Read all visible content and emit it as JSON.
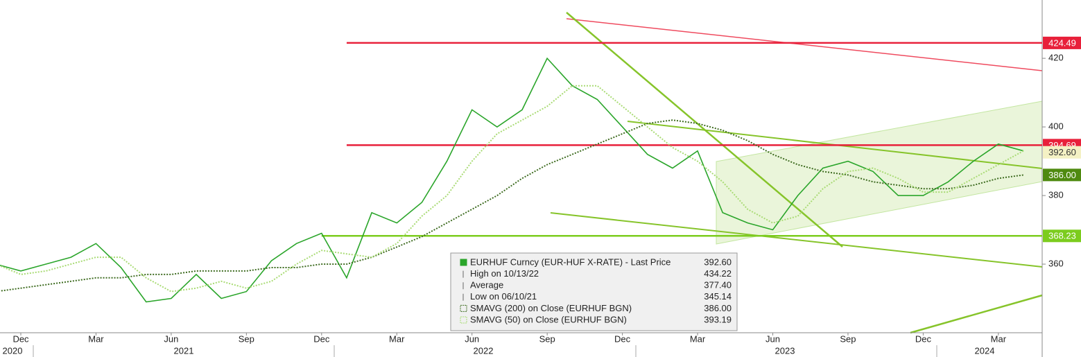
{
  "chart_data": {
    "type": "line",
    "x": [
      "2020-11",
      "2020-12",
      "2021-01",
      "2021-02",
      "2021-03",
      "2021-04",
      "2021-05",
      "2021-06",
      "2021-07",
      "2021-08",
      "2021-09",
      "2021-10",
      "2021-11",
      "2021-12",
      "2022-01",
      "2022-02",
      "2022-03",
      "2022-04",
      "2022-05",
      "2022-06",
      "2022-07",
      "2022-08",
      "2022-09",
      "2022-10",
      "2022-11",
      "2022-12",
      "2023-01",
      "2023-02",
      "2023-03",
      "2023-04",
      "2023-05",
      "2023-06",
      "2023-07",
      "2023-08",
      "2023-09",
      "2023-10",
      "2023-11",
      "2023-12",
      "2024-01",
      "2024-02",
      "2024-03",
      "2024-04"
    ],
    "series": [
      {
        "name": "EURHUF Curncy (EUR-HUF X-RATE) - Last Price",
        "color": "#2aa52a",
        "width": 1.6,
        "dash": "",
        "values": [
          360,
          358,
          360,
          362,
          366,
          359,
          349,
          350,
          357,
          350,
          352,
          361,
          366,
          369,
          356,
          375,
          372,
          378,
          390,
          405,
          400,
          405,
          420,
          412,
          408,
          400,
          392,
          388,
          393,
          375,
          372,
          370,
          380,
          388,
          390,
          387,
          380,
          380,
          384,
          390,
          395,
          393
        ]
      },
      {
        "name": "SMAVG (200)  on Close (EURHUF BGN)",
        "color": "#3d6b1f",
        "width": 2,
        "dash": "2 2",
        "values": [
          352,
          353,
          354,
          355,
          356,
          356,
          357,
          357,
          358,
          358,
          358,
          359,
          359,
          360,
          360,
          362,
          365,
          368,
          372,
          376,
          380,
          385,
          389,
          392,
          395,
          398,
          401,
          402,
          401,
          399,
          396,
          392,
          389,
          387,
          386,
          384,
          383,
          382,
          382,
          383,
          385,
          386
        ]
      },
      {
        "name": "SMAVG (50)  on Close (EURHUF BGN)",
        "color": "#a9db74",
        "width": 2,
        "dash": "2 2",
        "values": [
          360,
          357,
          358,
          360,
          362,
          362,
          356,
          352,
          353,
          355,
          353,
          355,
          360,
          364,
          363,
          362,
          366,
          374,
          380,
          390,
          398,
          402,
          406,
          412,
          412,
          406,
          400,
          394,
          390,
          384,
          376,
          372,
          374,
          382,
          387,
          388,
          385,
          381,
          381,
          385,
          389,
          393
        ]
      }
    ],
    "levels": [
      {
        "value": 424.49,
        "color": "#e8203a",
        "from": "2022-01",
        "line": true
      },
      {
        "value": 394.69,
        "color": "#e8203a",
        "from": "2022-01",
        "line": true
      },
      {
        "value": {
          "value": 392.6,
          "label": "392.60"
        },
        "color": "#f4f1c4",
        "from": "2024-04",
        "line": false
      },
      {
        "value": {
          "value": 386,
          "label": "386.00"
        },
        "color": "#4f8a10",
        "from": "2024-04",
        "line": false
      },
      {
        "value": 368.23,
        "color": "#7ccc1e",
        "from": "2021-12",
        "line": true
      }
    ],
    "ylim": [
      340,
      437
    ],
    "yticks": [
      360,
      380,
      400,
      420
    ],
    "xticks": [
      {
        "value": "2020-12",
        "label": "Dec"
      },
      {
        "value": "2021-03",
        "label": "Mar"
      },
      {
        "value": "2021-06",
        "label": "Jun"
      },
      {
        "value": "2021-09",
        "label": "Sep"
      },
      {
        "value": "2021-12",
        "label": "Dec"
      },
      {
        "value": "2022-03",
        "label": "Mar"
      },
      {
        "value": "2022-06",
        "label": "Jun"
      },
      {
        "value": "2022-09",
        "label": "Sep"
      },
      {
        "value": "2022-12",
        "label": "Dec"
      },
      {
        "value": "2023-03",
        "label": "Mar"
      },
      {
        "value": "2023-06",
        "label": "Jun"
      },
      {
        "value": "2023-09",
        "label": "Sep"
      },
      {
        "value": "2023-12",
        "label": "Dec"
      },
      {
        "value": "2024-03",
        "label": "Mar"
      }
    ],
    "years": [
      "2020",
      "2021",
      "2022",
      "2023",
      "2024"
    ],
    "legend_rows": [
      {
        "label": "EURHUF Curncy (EUR-HUF X-RATE) - Last Price",
        "value": "392.60"
      },
      {
        "label": "High on 10/13/22",
        "value": "434.22"
      },
      {
        "label": "Average",
        "value": "377.40"
      },
      {
        "label": "Low on 06/10/21",
        "value": "345.14"
      },
      {
        "label": "SMAVG (200)  on Close (EURHUF BGN)",
        "value": "386.00"
      },
      {
        "label": "SMAVG (50)  on Close (EURHUF BGN)",
        "value": "393.19"
      }
    ]
  }
}
